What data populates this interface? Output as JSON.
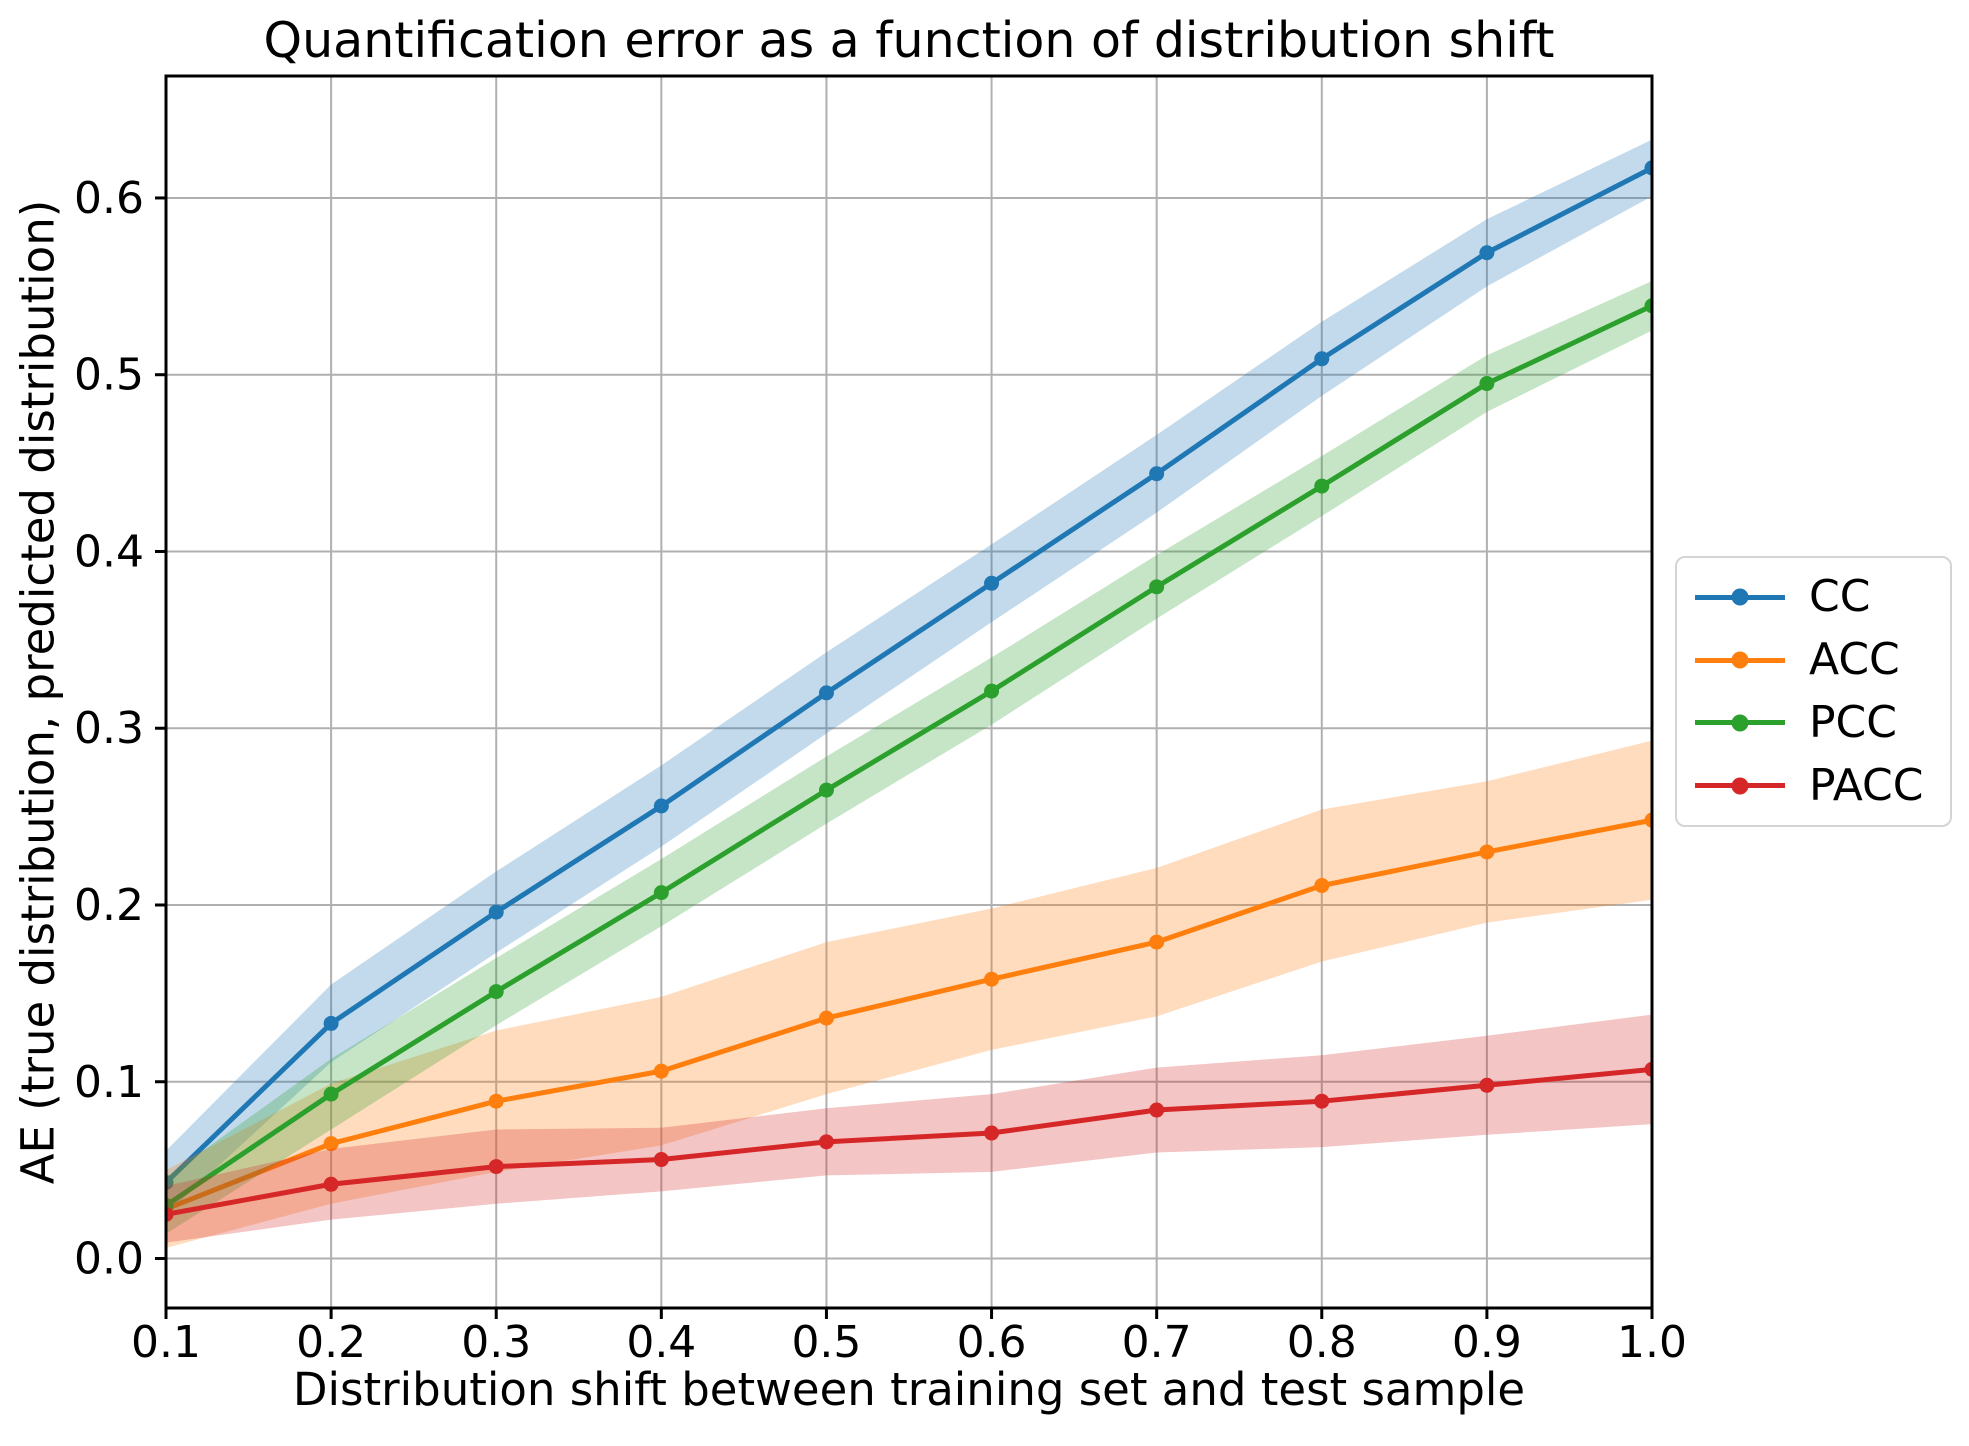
{
  "figure": {
    "background": "#ffffff"
  },
  "chart_data": {
    "type": "line",
    "title": "Quantification error as a function of distribution shift",
    "xlabel": "Distribution shift between training set and test sample",
    "ylabel": "AE (true distribution, predicted distribution)",
    "x": [
      0.1,
      0.2,
      0.3,
      0.4,
      0.5,
      0.6,
      0.7,
      0.8,
      0.9,
      1.0
    ],
    "xtick_labels": [
      "0.1",
      "0.2",
      "0.3",
      "0.4",
      "0.5",
      "0.6",
      "0.7",
      "0.8",
      "0.9",
      "1.0"
    ],
    "ytick_values": [
      0.0,
      0.1,
      0.2,
      0.3,
      0.4,
      0.5,
      0.6
    ],
    "ytick_labels": [
      "0.0",
      "0.1",
      "0.2",
      "0.3",
      "0.4",
      "0.5",
      "0.6"
    ],
    "xlim": [
      0.1,
      1.0
    ],
    "ylim": [
      -0.028,
      0.669
    ],
    "grid": true,
    "grid_color": "#b0b0b0",
    "spine_color": "#000000",
    "band_opacity": 0.27,
    "legend_position": "outside-right",
    "series": [
      {
        "name": "CC",
        "color": "#1f77b4",
        "values": [
          0.043,
          0.133,
          0.196,
          0.256,
          0.32,
          0.382,
          0.444,
          0.509,
          0.569,
          0.617
        ],
        "band_half_width": [
          0.018,
          0.022,
          0.023,
          0.023,
          0.023,
          0.022,
          0.022,
          0.021,
          0.019,
          0.016
        ]
      },
      {
        "name": "ACC",
        "color": "#ff7f0e",
        "values": [
          0.028,
          0.065,
          0.089,
          0.106,
          0.136,
          0.158,
          0.179,
          0.211,
          0.23,
          0.248
        ],
        "band_half_width": [
          0.022,
          0.034,
          0.04,
          0.042,
          0.043,
          0.04,
          0.042,
          0.043,
          0.04,
          0.045
        ]
      },
      {
        "name": "PCC",
        "color": "#2ca02c",
        "values": [
          0.03,
          0.093,
          0.151,
          0.207,
          0.265,
          0.321,
          0.38,
          0.437,
          0.495,
          0.539
        ],
        "band_half_width": [
          0.016,
          0.02,
          0.019,
          0.019,
          0.019,
          0.019,
          0.018,
          0.017,
          0.016,
          0.014
        ]
      },
      {
        "name": "PACC",
        "color": "#d62728",
        "values": [
          0.025,
          0.042,
          0.052,
          0.056,
          0.066,
          0.071,
          0.084,
          0.089,
          0.098,
          0.107
        ],
        "band_half_width": [
          0.016,
          0.02,
          0.021,
          0.018,
          0.019,
          0.022,
          0.024,
          0.026,
          0.028,
          0.031
        ]
      }
    ]
  }
}
